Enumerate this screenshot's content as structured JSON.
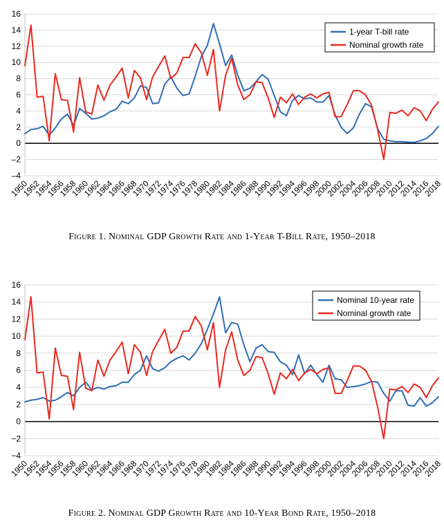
{
  "chart_data": [
    {
      "type": "line",
      "title": "Figure 1. Nominal GDP Growth Rate and 1-Year T-Bill Rate, 1950–2018",
      "ylim": [
        -4,
        16
      ],
      "yticks": [
        "16",
        "14",
        "12",
        "10",
        "8",
        "6",
        "4",
        "2",
        "0",
        "–2",
        "–4"
      ],
      "xlim": [
        1950,
        2018
      ],
      "xticks": [
        "1950",
        "1952",
        "1954",
        "1956",
        "1958",
        "1960",
        "1962",
        "1964",
        "1966",
        "1968",
        "1970",
        "1972",
        "1974",
        "1976",
        "1978",
        "1980",
        "1982",
        "1984",
        "1986",
        "1988",
        "1990",
        "1992",
        "1994",
        "1996",
        "1998",
        "2000",
        "2002",
        "2004",
        "2006",
        "2008",
        "2010",
        "2012",
        "2014",
        "2016",
        "2018"
      ],
      "legend_position": "top-right",
      "grid": "horizontal",
      "x": [
        1950,
        1951,
        1952,
        1953,
        1954,
        1955,
        1956,
        1957,
        1958,
        1959,
        1960,
        1961,
        1962,
        1963,
        1964,
        1965,
        1966,
        1967,
        1968,
        1969,
        1970,
        1971,
        1972,
        1973,
        1974,
        1975,
        1976,
        1977,
        1978,
        1979,
        1980,
        1981,
        1982,
        1983,
        1984,
        1985,
        1986,
        1987,
        1988,
        1989,
        1990,
        1991,
        1992,
        1993,
        1994,
        1995,
        1996,
        1997,
        1998,
        1999,
        2000,
        2001,
        2002,
        2003,
        2004,
        2005,
        2006,
        2007,
        2008,
        2009,
        2010,
        2011,
        2012,
        2013,
        2014,
        2015,
        2016,
        2017,
        2018
      ],
      "series": [
        {
          "name": "1-year T-bill rate",
          "color": "#2e6db4",
          "values": [
            1.2,
            1.7,
            1.8,
            2.1,
            1.0,
            1.9,
            3.0,
            3.6,
            2.2,
            4.3,
            3.7,
            3.0,
            3.1,
            3.4,
            3.9,
            4.2,
            5.2,
            4.9,
            5.6,
            7.1,
            6.9,
            4.9,
            5.0,
            7.3,
            8.2,
            6.8,
            5.9,
            6.1,
            8.3,
            10.7,
            12.1,
            14.8,
            12.3,
            9.6,
            10.9,
            8.4,
            6.5,
            6.8,
            7.6,
            8.5,
            7.9,
            5.9,
            3.9,
            3.4,
            5.3,
            5.9,
            5.5,
            5.6,
            5.1,
            5.1,
            5.9,
            3.5,
            2.0,
            1.2,
            1.9,
            3.6,
            4.9,
            4.5,
            1.8,
            0.5,
            0.3,
            0.2,
            0.2,
            0.15,
            0.12,
            0.3,
            0.6,
            1.2,
            2.1
          ]
        },
        {
          "name": "Nominal growth rate",
          "color": "#e8281e",
          "values": [
            9.6,
            14.6,
            5.7,
            5.8,
            0.3,
            8.6,
            5.4,
            5.3,
            1.4,
            8.1,
            3.9,
            3.6,
            7.2,
            5.3,
            7.2,
            8.2,
            9.3,
            5.6,
            9.0,
            8.1,
            5.4,
            8.2,
            9.5,
            10.8,
            8.0,
            8.7,
            10.6,
            10.6,
            12.3,
            11.2,
            8.4,
            11.6,
            4.0,
            8.4,
            10.5,
            7.2,
            5.4,
            6.0,
            7.6,
            7.5,
            5.6,
            3.2,
            5.7,
            5.0,
            6.1,
            4.8,
            5.7,
            6.1,
            5.6,
            6.1,
            6.3,
            3.3,
            3.3,
            4.8,
            6.5,
            6.5,
            6.0,
            4.7,
            1.7,
            -2.0,
            3.8,
            3.7,
            4.1,
            3.4,
            4.4,
            4.0,
            2.8,
            4.2,
            5.1
          ]
        }
      ]
    },
    {
      "type": "line",
      "title": "Figure 2. Nominal GDP Growth Rate and 10-Year Bond Rate, 1950–2018",
      "ylim": [
        -4,
        16
      ],
      "yticks": [
        "16",
        "14",
        "12",
        "10",
        "8",
        "6",
        "4",
        "2",
        "0",
        "−2",
        "−4"
      ],
      "xlim": [
        1950,
        2018
      ],
      "xticks": [
        "1950",
        "1952",
        "1954",
        "1956",
        "1958",
        "1960",
        "1962",
        "1964",
        "1966",
        "1968",
        "1970",
        "1972",
        "1974",
        "1976",
        "1978",
        "1980",
        "1982",
        "1984",
        "1986",
        "1988",
        "1990",
        "1992",
        "1994",
        "1996",
        "1998",
        "2000",
        "2002",
        "2004",
        "2006",
        "2008",
        "2010",
        "2012",
        "2014",
        "2016",
        "2018"
      ],
      "legend_position": "top-right",
      "grid": "horizontal",
      "x": [
        1950,
        1951,
        1952,
        1953,
        1954,
        1955,
        1956,
        1957,
        1958,
        1959,
        1960,
        1961,
        1962,
        1963,
        1964,
        1965,
        1966,
        1967,
        1968,
        1969,
        1970,
        1971,
        1972,
        1973,
        1974,
        1975,
        1976,
        1977,
        1978,
        1979,
        1980,
        1981,
        1982,
        1983,
        1984,
        1985,
        1986,
        1987,
        1988,
        1989,
        1990,
        1991,
        1992,
        1993,
        1994,
        1995,
        1996,
        1997,
        1998,
        1999,
        2000,
        2001,
        2002,
        2003,
        2004,
        2005,
        2006,
        2007,
        2008,
        2009,
        2010,
        2011,
        2012,
        2013,
        2014,
        2015,
        2016,
        2017,
        2018
      ],
      "series": [
        {
          "name": "Nominal 10-year rate",
          "color": "#2e6db4",
          "values": [
            2.3,
            2.5,
            2.6,
            2.8,
            2.4,
            2.5,
            2.9,
            3.4,
            3.0,
            4.0,
            4.6,
            3.7,
            4.0,
            3.8,
            4.1,
            4.2,
            4.6,
            4.6,
            5.5,
            6.0,
            7.7,
            6.2,
            5.9,
            6.3,
            7.0,
            7.4,
            7.7,
            7.2,
            8.0,
            9.1,
            10.8,
            12.6,
            14.6,
            10.4,
            11.6,
            11.4,
            9.0,
            7.0,
            8.6,
            9.0,
            8.2,
            8.1,
            7.0,
            6.6,
            5.5,
            7.8,
            5.6,
            6.6,
            5.5,
            4.6,
            6.6,
            5.0,
            4.9,
            4.0,
            4.1,
            4.2,
            4.4,
            4.7,
            4.6,
            3.3,
            2.4,
            3.6,
            3.6,
            1.9,
            1.8,
            2.8,
            1.8,
            2.2,
            2.9
          ]
        },
        {
          "name": "Nominal growth rate",
          "color": "#e8281e",
          "values": [
            9.6,
            14.6,
            5.7,
            5.8,
            0.3,
            8.6,
            5.4,
            5.3,
            1.4,
            8.1,
            3.9,
            3.6,
            7.2,
            5.3,
            7.2,
            8.2,
            9.3,
            5.6,
            9.0,
            8.1,
            5.4,
            8.2,
            9.5,
            10.8,
            8.0,
            8.7,
            10.6,
            10.6,
            12.3,
            11.2,
            8.4,
            11.6,
            4.0,
            8.4,
            10.5,
            7.2,
            5.4,
            6.0,
            7.6,
            7.5,
            5.6,
            3.2,
            5.7,
            5.0,
            6.1,
            4.8,
            5.7,
            6.1,
            5.6,
            6.1,
            6.3,
            3.3,
            3.3,
            4.8,
            6.5,
            6.5,
            6.0,
            4.7,
            1.7,
            -2.0,
            3.8,
            3.7,
            4.1,
            3.4,
            4.4,
            4.0,
            2.8,
            4.2,
            5.1
          ]
        }
      ]
    }
  ]
}
